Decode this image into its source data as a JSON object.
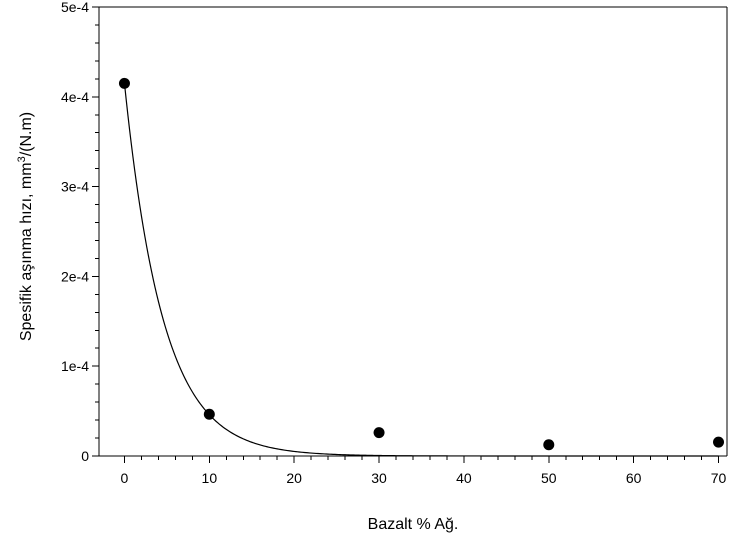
{
  "chart_data": {
    "type": "scatter",
    "xlabel": "Bazalt % Ağ.",
    "ylabel": {
      "prefix": "Spesifik aşınma hızı, mm",
      "sup": "3",
      "suffix": "/(N.m)"
    },
    "xlim": [
      -3,
      71
    ],
    "ylim": [
      0,
      0.0005
    ],
    "x_ticks": [
      0,
      10,
      20,
      30,
      40,
      50,
      60,
      70
    ],
    "x_tick_labels": [
      "0",
      "10",
      "20",
      "30",
      "40",
      "50",
      "60",
      "70"
    ],
    "x_minor_step": 2,
    "y_ticks": [
      0,
      0.0001,
      0.0002,
      0.0003,
      0.0004,
      0.0005
    ],
    "y_tick_labels": [
      "0",
      "1e-4",
      "2e-4",
      "3e-4",
      "4e-4",
      "5e-4"
    ],
    "y_minor_step": 2e-05,
    "grid": false,
    "legend": "none",
    "series": [
      {
        "x": [
          0,
          10,
          30,
          50,
          70
        ],
        "y": [
          0.000415,
          4.65e-05,
          2.6e-05,
          1.25e-05,
          1.55e-05
        ],
        "marker": "circle",
        "color": "#000000"
      }
    ],
    "fit_curve": {
      "model": "exponential decay",
      "y0": 0.000415,
      "decay_rate": 0.22,
      "x_range": [
        0,
        70
      ],
      "color": "#000000"
    }
  }
}
